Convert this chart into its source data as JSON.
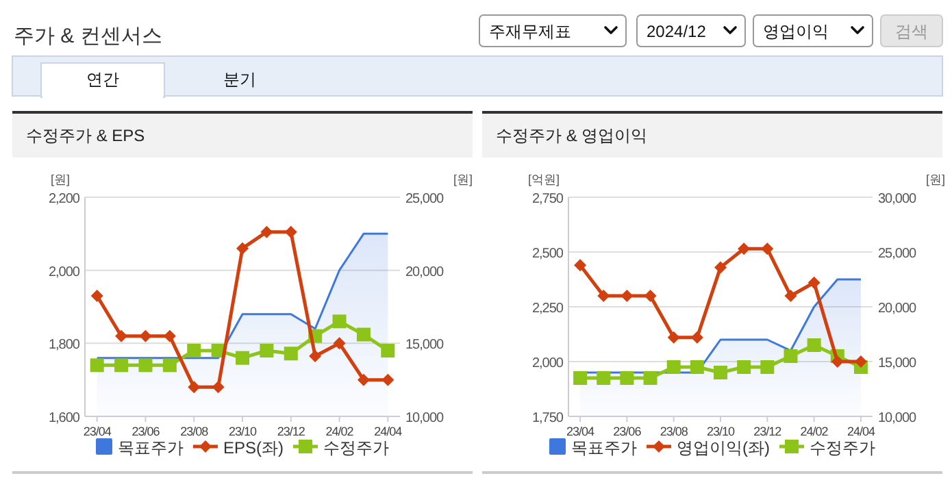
{
  "chart_data": [
    {
      "type": "other",
      "title": "주가 & 컨센서스",
      "annotations": [
        "주재무제표",
        "2024/12",
        "영업이익",
        "검색",
        "연간",
        "분기"
      ]
    },
    {
      "type": "line",
      "title": "수정주가 & EPS",
      "ylabel": "[원]",
      "y2label": "[원]",
      "categories": [
        "23/04",
        null,
        "23/06",
        null,
        "23/08",
        null,
        "23/10",
        null,
        "23/12",
        null,
        "24/02",
        null,
        "24/04"
      ],
      "series": [
        {
          "name": "목표주가",
          "type": "area",
          "axis": "y2",
          "color": "#3f78dc",
          "marker": "none",
          "values": [
            14000,
            14000,
            14000,
            14000,
            14000,
            14000,
            17000,
            17000,
            17000,
            16000,
            20000,
            22500,
            22500
          ]
        },
        {
          "name": "EPS(좌)",
          "type": "line",
          "color": "#d2400f",
          "marker": "diamond",
          "values": [
            1930,
            1820,
            1820,
            1820,
            1680,
            1680,
            2060,
            2105,
            2105,
            1765,
            1800,
            1700,
            1700
          ]
        },
        {
          "name": "수정주가",
          "type": "line",
          "axis": "y2",
          "color": "#8cc41a",
          "marker": "square",
          "values": [
            13500,
            13500,
            13500,
            13500,
            14500,
            14500,
            14000,
            14500,
            14300,
            15500,
            16500,
            15600,
            14500
          ]
        }
      ],
      "ylim": [
        1600,
        2200
      ],
      "yticks": [
        {
          "value": 1600,
          "label": "1,600"
        },
        {
          "value": 1800,
          "label": "1,800"
        },
        {
          "value": 2000,
          "label": "2,000"
        },
        {
          "value": 2200,
          "label": "2,200"
        }
      ],
      "y2lim": [
        10000,
        25000
      ],
      "y2ticks": [
        {
          "value": 10000,
          "label": "10,000"
        },
        {
          "value": 15000,
          "label": "15,000"
        },
        {
          "value": 20000,
          "label": "20,000"
        },
        {
          "value": 25000,
          "label": "25,000"
        }
      ],
      "grid": "y",
      "legend": "bottom"
    },
    {
      "type": "line",
      "title": "수정주가 & 영업이익",
      "ylabel": "[억원]",
      "y2label": "[원]",
      "categories": [
        "23/04",
        null,
        "23/06",
        null,
        "23/08",
        null,
        "23/10",
        null,
        "23/12",
        null,
        "24/02",
        null,
        "24/04"
      ],
      "series": [
        {
          "name": "목표주가",
          "type": "area",
          "axis": "y2",
          "color": "#3f78dc",
          "marker": "none",
          "values": [
            14000,
            14000,
            14000,
            14000,
            14000,
            14000,
            17000,
            17000,
            17000,
            16000,
            20000,
            22500,
            22500
          ]
        },
        {
          "name": "영업이익(좌)",
          "type": "line",
          "color": "#d2400f",
          "marker": "diamond",
          "values": [
            2440,
            2300,
            2300,
            2300,
            2110,
            2110,
            2430,
            2515,
            2515,
            2300,
            2360,
            2000,
            2000
          ]
        },
        {
          "name": "수정주가",
          "type": "line",
          "axis": "y2",
          "color": "#8cc41a",
          "marker": "square",
          "values": [
            13500,
            13500,
            13500,
            13500,
            14500,
            14500,
            14000,
            14500,
            14500,
            15500,
            16500,
            15500,
            14500
          ]
        }
      ],
      "ylim": [
        1750,
        2750
      ],
      "yticks": [
        {
          "value": 1750,
          "label": "1,750"
        },
        {
          "value": 2000,
          "label": "2,000"
        },
        {
          "value": 2250,
          "label": "2,250"
        },
        {
          "value": 2500,
          "label": "2,500"
        },
        {
          "value": 2750,
          "label": "2,750"
        }
      ],
      "y2lim": [
        10000,
        30000
      ],
      "y2ticks": [
        {
          "value": 10000,
          "label": "10,000"
        },
        {
          "value": 15000,
          "label": "15,000"
        },
        {
          "value": 20000,
          "label": "20,000"
        },
        {
          "value": 25000,
          "label": "25,000"
        },
        {
          "value": 30000,
          "label": "30,000"
        }
      ],
      "grid": "y",
      "legend": "bottom"
    }
  ]
}
